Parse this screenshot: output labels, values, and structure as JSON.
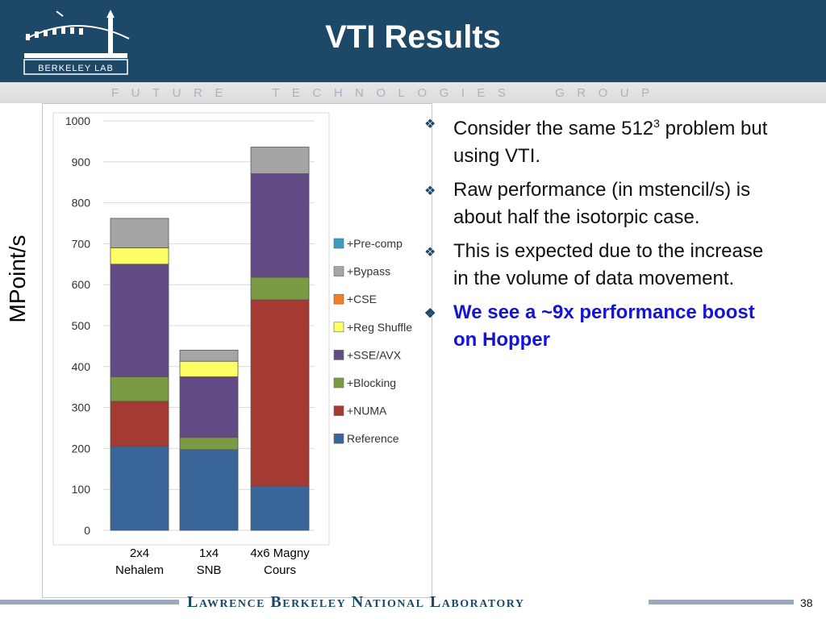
{
  "slide": {
    "title": "VTI Results",
    "group_banner": "FUTURE TECHNOLOGIES GROUP",
    "logo_text": "BERKELEY LAB",
    "footer": "Lawrence Berkeley National Laboratory",
    "page_number": "38"
  },
  "bullets": [
    {
      "text": "Consider the same 512",
      "sup": "3",
      "text_after": " problem but using VTI."
    },
    {
      "text": "Raw performance (in mstencil/s) is about half the isotorpic case."
    },
    {
      "text": "This is expected due to the increase in the volume of data movement."
    },
    {
      "text": "We see a ~9x performance boost on Hopper",
      "highlight": true
    }
  ],
  "colors": {
    "header_bg": "#1d4868",
    "Reference": "#3a6699",
    "+NUMA": "#a53a33",
    "+Blocking": "#7a9a44",
    "+SSE/AVX": "#624b85",
    "+Reg Shuffle": "#ffff66",
    "+CSE": "#f07f27",
    "+Bypass": "#a5a5a5",
    "+Pre-comp": "#3a9cc0",
    "highlight_text": "#1414d2"
  },
  "chart_data": {
    "type": "bar",
    "stacked": true,
    "ylabel": "MPoint/s",
    "ylim": [
      0,
      1000
    ],
    "yticks": [
      0,
      100,
      200,
      300,
      400,
      500,
      600,
      700,
      800,
      900,
      1000
    ],
    "grid": true,
    "legend_position": "right",
    "categories": [
      "2x4 Nehalem",
      "1x4 SNB",
      "4x6 Magny Cours"
    ],
    "category_lines": [
      [
        "2x4",
        "Nehalem"
      ],
      [
        "1x4",
        "SNB"
      ],
      [
        "4x6 Magny",
        "Cours"
      ]
    ],
    "legend_order": [
      "+Pre-comp",
      "+Bypass",
      "+CSE",
      "+Reg Shuffle",
      "+SSE/AVX",
      "+Blocking",
      "+NUMA",
      "Reference"
    ],
    "series": [
      {
        "name": "Reference",
        "values": [
          205,
          197,
          108
        ]
      },
      {
        "name": "+NUMA",
        "values": [
          110,
          0,
          455
        ]
      },
      {
        "name": "+Blocking",
        "values": [
          60,
          30,
          55
        ]
      },
      {
        "name": "+SSE/AVX",
        "values": [
          275,
          148,
          253
        ]
      },
      {
        "name": "+Reg Shuffle",
        "values": [
          40,
          38,
          0
        ]
      },
      {
        "name": "+CSE",
        "values": [
          0,
          0,
          0
        ]
      },
      {
        "name": "+Bypass",
        "values": [
          72,
          27,
          65
        ]
      },
      {
        "name": "+Pre-comp",
        "values": [
          0,
          0,
          0
        ]
      }
    ]
  }
}
